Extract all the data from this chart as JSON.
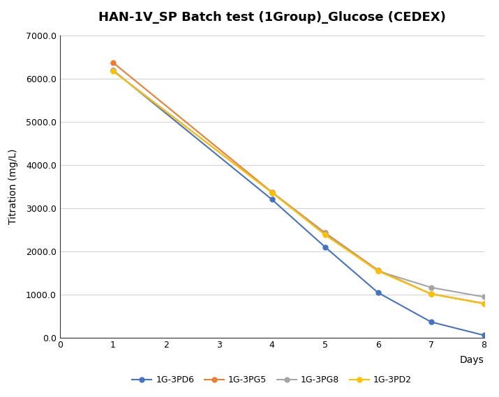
{
  "title": "HAN-1V_SP Batch test (1Group)_Glucose (CEDEX)",
  "xlabel": "Days",
  "ylabel": "Titration (mg/L)",
  "xlim": [
    0,
    8
  ],
  "ylim": [
    0,
    7000
  ],
  "xticks": [
    0,
    1,
    2,
    3,
    4,
    5,
    6,
    7,
    8
  ],
  "yticks": [
    0.0,
    1000.0,
    2000.0,
    3000.0,
    4000.0,
    5000.0,
    6000.0,
    7000.0
  ],
  "series": [
    {
      "label": "1G-3PD6",
      "color": "#4472C4",
      "marker": "o",
      "x": [
        1,
        4,
        5,
        6,
        7,
        8
      ],
      "y": [
        6200,
        3200,
        2100,
        1040,
        360,
        50
      ]
    },
    {
      "label": "1G-3PG5",
      "color": "#ED7D31",
      "marker": "o",
      "x": [
        1,
        4,
        5,
        6,
        7,
        8
      ],
      "y": [
        6380,
        3370,
        2430,
        1560,
        1010,
        790
      ]
    },
    {
      "label": "1G-3PG8",
      "color": "#A5A5A5",
      "marker": "o",
      "x": [
        1,
        4,
        5,
        6,
        7,
        8
      ],
      "y": [
        6190,
        3360,
        2410,
        1540,
        1160,
        940
      ]
    },
    {
      "label": "1G-3PD2",
      "color": "#FFC000",
      "marker": "o",
      "x": [
        1,
        4,
        5,
        6,
        7,
        8
      ],
      "y": [
        6180,
        3360,
        2380,
        1540,
        1010,
        780
      ]
    }
  ],
  "legend_ncol": 4,
  "background_color": "#FFFFFF",
  "grid_color": "#D3D3D3",
  "title_fontsize": 13,
  "axis_label_fontsize": 10,
  "tick_fontsize": 9,
  "legend_fontsize": 9,
  "line_width": 1.5,
  "marker_size": 5
}
